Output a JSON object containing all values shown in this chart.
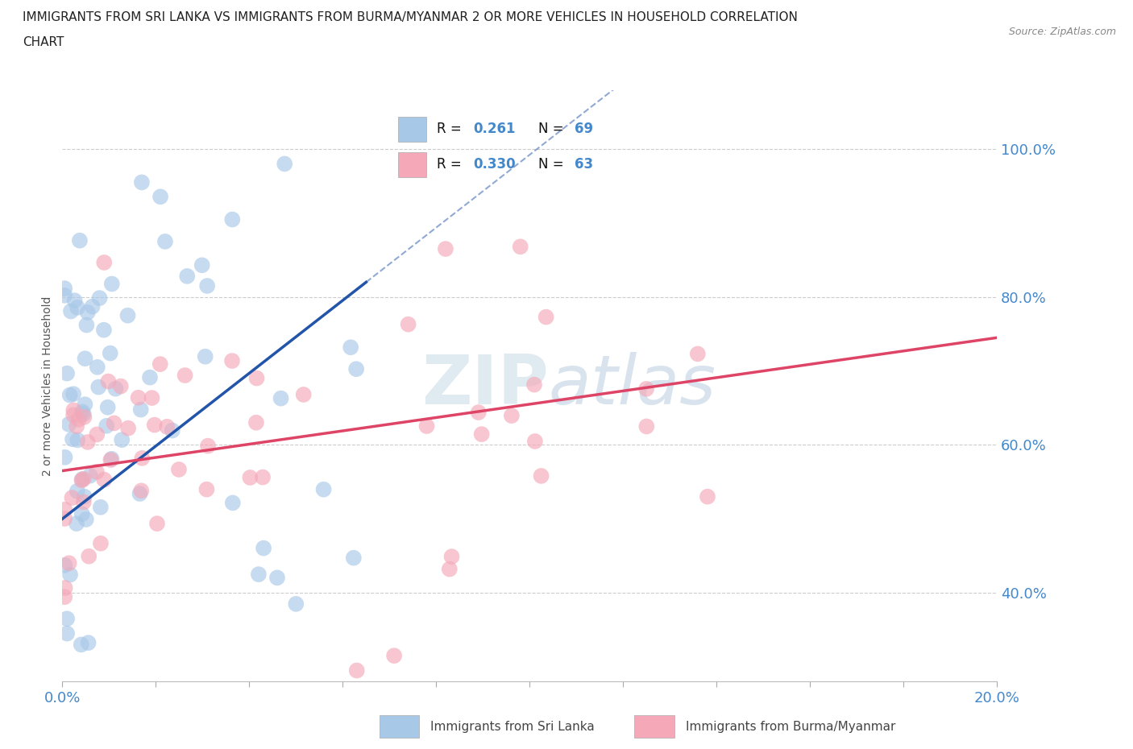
{
  "title_line1": "IMMIGRANTS FROM SRI LANKA VS IMMIGRANTS FROM BURMA/MYANMAR 2 OR MORE VEHICLES IN HOUSEHOLD CORRELATION",
  "title_line2": "CHART",
  "source_text": "Source: ZipAtlas.com",
  "sri_lanka_color": "#a8c8e8",
  "burma_color": "#f4a8b8",
  "sri_lanka_line_color": "#2255aa",
  "burma_line_color": "#dd4466",
  "legend_sri_lanka": "Immigrants from Sri Lanka",
  "legend_burma": "Immigrants from Burma/Myanmar",
  "R_sri_lanka": 0.261,
  "N_sri_lanka": 69,
  "R_burma": 0.33,
  "N_burma": 63,
  "watermark": "ZIPAtlas",
  "axis_color": "#4488cc",
  "background_color": "#ffffff",
  "xlim": [
    0.0,
    0.2
  ],
  "ylim": [
    0.28,
    1.08
  ],
  "xticks": [
    0.0,
    0.02,
    0.04,
    0.06,
    0.08,
    0.1,
    0.12,
    0.14,
    0.16,
    0.18,
    0.2
  ],
  "yticks": [
    0.4,
    0.6,
    0.8,
    1.0
  ],
  "sl_trend_x0": 0.0,
  "sl_trend_y0": 0.5,
  "sl_trend_x1": 0.065,
  "sl_trend_y1": 0.82,
  "bm_trend_x0": 0.0,
  "bm_trend_y0": 0.565,
  "bm_trend_x1": 0.2,
  "bm_trend_y1": 0.745
}
